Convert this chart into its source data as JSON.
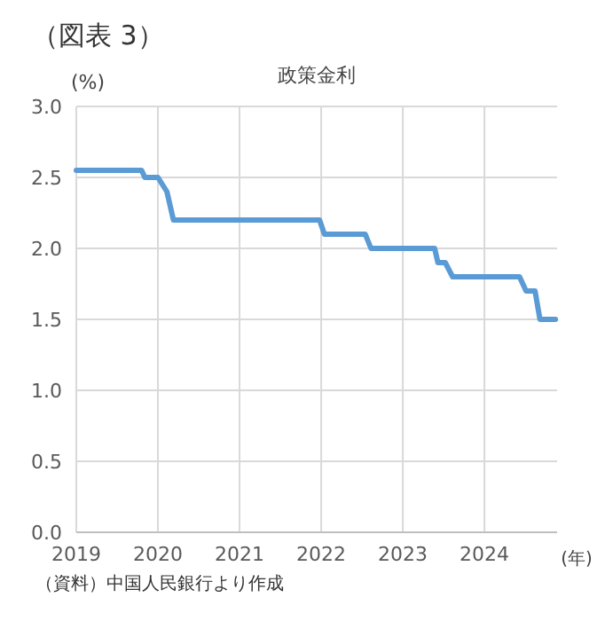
{
  "chart_data": {
    "type": "line",
    "title": "（図表 3）",
    "subtitle": "政策金利",
    "ylabel": "(%)",
    "xlabel": "(年)",
    "annotations": [
      "（資料）中国人民銀行より作成"
    ],
    "x": [
      2019.0,
      2019.8,
      2019.84,
      2020.0,
      2020.11,
      2020.19,
      2021.98,
      2022.04,
      2022.54,
      2022.61,
      2023.39,
      2023.43,
      2023.52,
      2023.61,
      2024.43,
      2024.51,
      2024.62,
      2024.68,
      2024.87
    ],
    "series": [
      {
        "color": "#5b9bd5",
        "values": [
          2.55,
          2.55,
          2.5,
          2.5,
          2.4,
          2.2,
          2.2,
          2.1,
          2.1,
          2.0,
          2.0,
          1.9,
          1.9,
          1.8,
          1.8,
          1.7,
          1.7,
          1.5,
          1.5
        ]
      }
    ],
    "xlim": [
      2019,
      2024.89
    ],
    "xticks": [
      2019,
      2020,
      2021,
      2022,
      2023,
      2024
    ],
    "ylim": [
      0,
      3
    ],
    "yticks": [
      {
        "value": 0,
        "label": "0.0"
      },
      {
        "value": 0.5,
        "label": "0.5"
      },
      {
        "value": 1,
        "label": "1.0"
      },
      {
        "value": 1.5,
        "label": "1.5"
      },
      {
        "value": 2,
        "label": "2.0"
      },
      {
        "value": 2.5,
        "label": "2.5"
      },
      {
        "value": 3,
        "label": "3.0"
      }
    ],
    "grid": true,
    "marker": "none",
    "line_style": "solid"
  }
}
